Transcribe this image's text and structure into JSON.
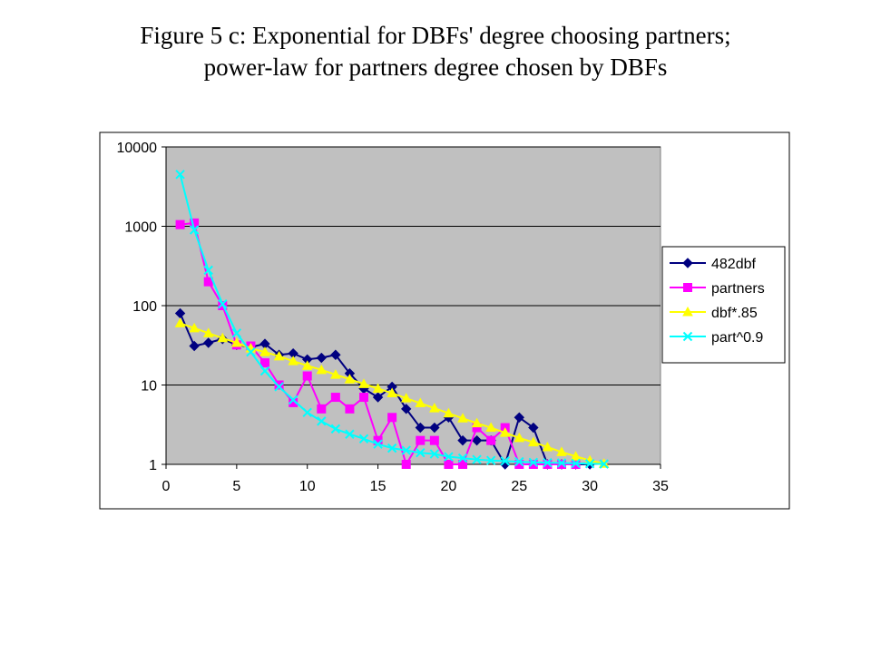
{
  "title": {
    "line1": "Figure 5 c: Exponential for DBFs' degree choosing partners;",
    "line2": "power-law for partners degree chosen by DBFs"
  },
  "chart_data": {
    "type": "line",
    "title": "",
    "xlabel": "",
    "ylabel": "",
    "xlim": [
      0,
      35
    ],
    "ylim": [
      1,
      10000
    ],
    "yscale": "log",
    "x_ticks": [
      "0",
      "5",
      "10",
      "15",
      "20",
      "25",
      "30",
      "35"
    ],
    "y_ticks": [
      "1",
      "10",
      "100",
      "1000",
      "10000"
    ],
    "grid": true,
    "legend": "right",
    "plot_background": "#C0C0C0",
    "series": [
      {
        "name": "482dbf",
        "color": "#000080",
        "marker": "diamond",
        "x": [
          1,
          2,
          3,
          4,
          5,
          6,
          7,
          8,
          9,
          10,
          11,
          12,
          13,
          14,
          15,
          16,
          17,
          18,
          19,
          20,
          21,
          22,
          23,
          24,
          25,
          26,
          27,
          28,
          29,
          30
        ],
        "y": [
          80,
          31,
          34,
          38,
          32,
          30,
          33,
          24,
          25,
          21,
          22,
          24,
          14,
          9,
          7,
          9.5,
          5,
          2.9,
          2.9,
          3.9,
          2,
          2,
          2,
          1,
          3.9,
          2.9,
          1,
          1,
          1,
          1
        ]
      },
      {
        "name": "partners",
        "color": "#FF00FF",
        "marker": "square",
        "x": [
          1,
          2,
          3,
          4,
          5,
          6,
          7,
          8,
          9,
          10,
          11,
          12,
          13,
          14,
          15,
          16,
          17,
          18,
          19,
          20,
          21,
          22,
          23,
          24,
          25,
          26,
          27,
          28,
          29
        ],
        "y": [
          1050,
          1100,
          200,
          100,
          32,
          31,
          19,
          10,
          6,
          13,
          5,
          7,
          5,
          7,
          2,
          3.9,
          1,
          2,
          2,
          1,
          1,
          2.9,
          2,
          2.9,
          1,
          1,
          1,
          1,
          1
        ]
      },
      {
        "name": "dbf*.85",
        "color": "#FFFF00",
        "marker": "triangle",
        "x": [
          1,
          2,
          3,
          4,
          5,
          6,
          7,
          8,
          9,
          10,
          11,
          12,
          13,
          14,
          15,
          16,
          17,
          18,
          19,
          20,
          21,
          22,
          23,
          24,
          25,
          26,
          27,
          28,
          29,
          30,
          31
        ],
        "y": [
          60,
          52,
          45,
          39,
          34,
          29,
          26,
          23,
          20,
          17.5,
          15.5,
          13.5,
          11.8,
          10.3,
          9,
          7.9,
          6.8,
          5.9,
          5.1,
          4.4,
          3.8,
          3.3,
          2.9,
          2.5,
          2.15,
          1.9,
          1.65,
          1.43,
          1.26,
          1.12,
          1.02
        ]
      },
      {
        "name": "part^0.9",
        "color": "#00FFFF",
        "marker": "x",
        "x": [
          1,
          2,
          3,
          4,
          5,
          6,
          7,
          8,
          9,
          10,
          11,
          12,
          13,
          14,
          15,
          16,
          17,
          18,
          19,
          20,
          21,
          22,
          23,
          24,
          25,
          26,
          27,
          28,
          29,
          30,
          31
        ],
        "y": [
          4500,
          900,
          280,
          105,
          45,
          26,
          15,
          9.5,
          6.5,
          4.5,
          3.5,
          2.8,
          2.4,
          2.1,
          1.8,
          1.6,
          1.5,
          1.4,
          1.35,
          1.25,
          1.2,
          1.15,
          1.12,
          1.1,
          1.08,
          1.06,
          1.05,
          1.04,
          1.03,
          1.02,
          1.01
        ]
      }
    ]
  }
}
